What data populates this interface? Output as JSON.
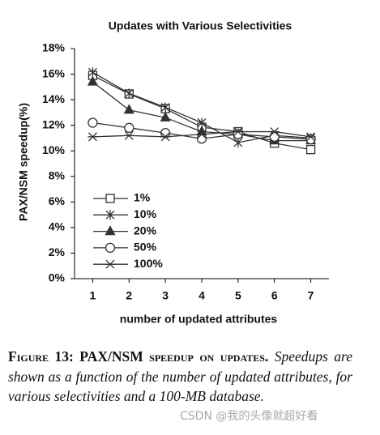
{
  "chart_data": {
    "type": "line",
    "title": "Updates with Various Selectivities",
    "xlabel": "number of updated attributes",
    "ylabel": "PAX/NSM speedup(%)",
    "x": [
      1,
      2,
      3,
      4,
      5,
      6,
      7
    ],
    "xlim": [
      0.5,
      7.5
    ],
    "xticks": [
      1,
      2,
      3,
      4,
      5,
      6,
      7
    ],
    "ylim": [
      0,
      18
    ],
    "yticks": [
      {
        "value": 0,
        "label": "0%"
      },
      {
        "value": 2,
        "label": "2%"
      },
      {
        "value": 4,
        "label": "4%"
      },
      {
        "value": 6,
        "label": "6%"
      },
      {
        "value": 8,
        "label": "8%"
      },
      {
        "value": 10,
        "label": "10%"
      },
      {
        "value": 12,
        "label": "12%"
      },
      {
        "value": 14,
        "label": "14%"
      },
      {
        "value": 16,
        "label": "16%"
      },
      {
        "value": 18,
        "label": "18%"
      }
    ],
    "series": [
      {
        "name": "1%",
        "color": "#333333",
        "marker": "square",
        "values": [
          15.9,
          14.45,
          13.3,
          11.85,
          11.5,
          10.6,
          10.1
        ]
      },
      {
        "name": "10%",
        "color": "#333333",
        "marker": "star",
        "values": [
          16.15,
          14.5,
          13.4,
          12.2,
          10.65,
          11.2,
          11.0
        ]
      },
      {
        "name": "20%",
        "color": "#333333",
        "marker": "triangle",
        "values": [
          15.4,
          13.2,
          12.6,
          11.5,
          11.3,
          10.8,
          10.8
        ]
      },
      {
        "name": "50%",
        "color": "#333333",
        "marker": "circle",
        "values": [
          12.2,
          11.8,
          11.4,
          10.95,
          11.3,
          11.1,
          10.9
        ]
      },
      {
        "name": "100%",
        "color": "#333333",
        "marker": "asterisk",
        "values": [
          11.1,
          11.2,
          11.1,
          11.3,
          11.5,
          11.5,
          11.1
        ]
      }
    ],
    "legend": "lower-left"
  },
  "caption": {
    "label": "Figure 13: PAX/NSM speedup on updates.",
    "text": "Speedups are shown as a function of the number of updated attributes, for various selectivities and a 100-MB database."
  },
  "watermark": "CSDN @我的头像就超好看"
}
